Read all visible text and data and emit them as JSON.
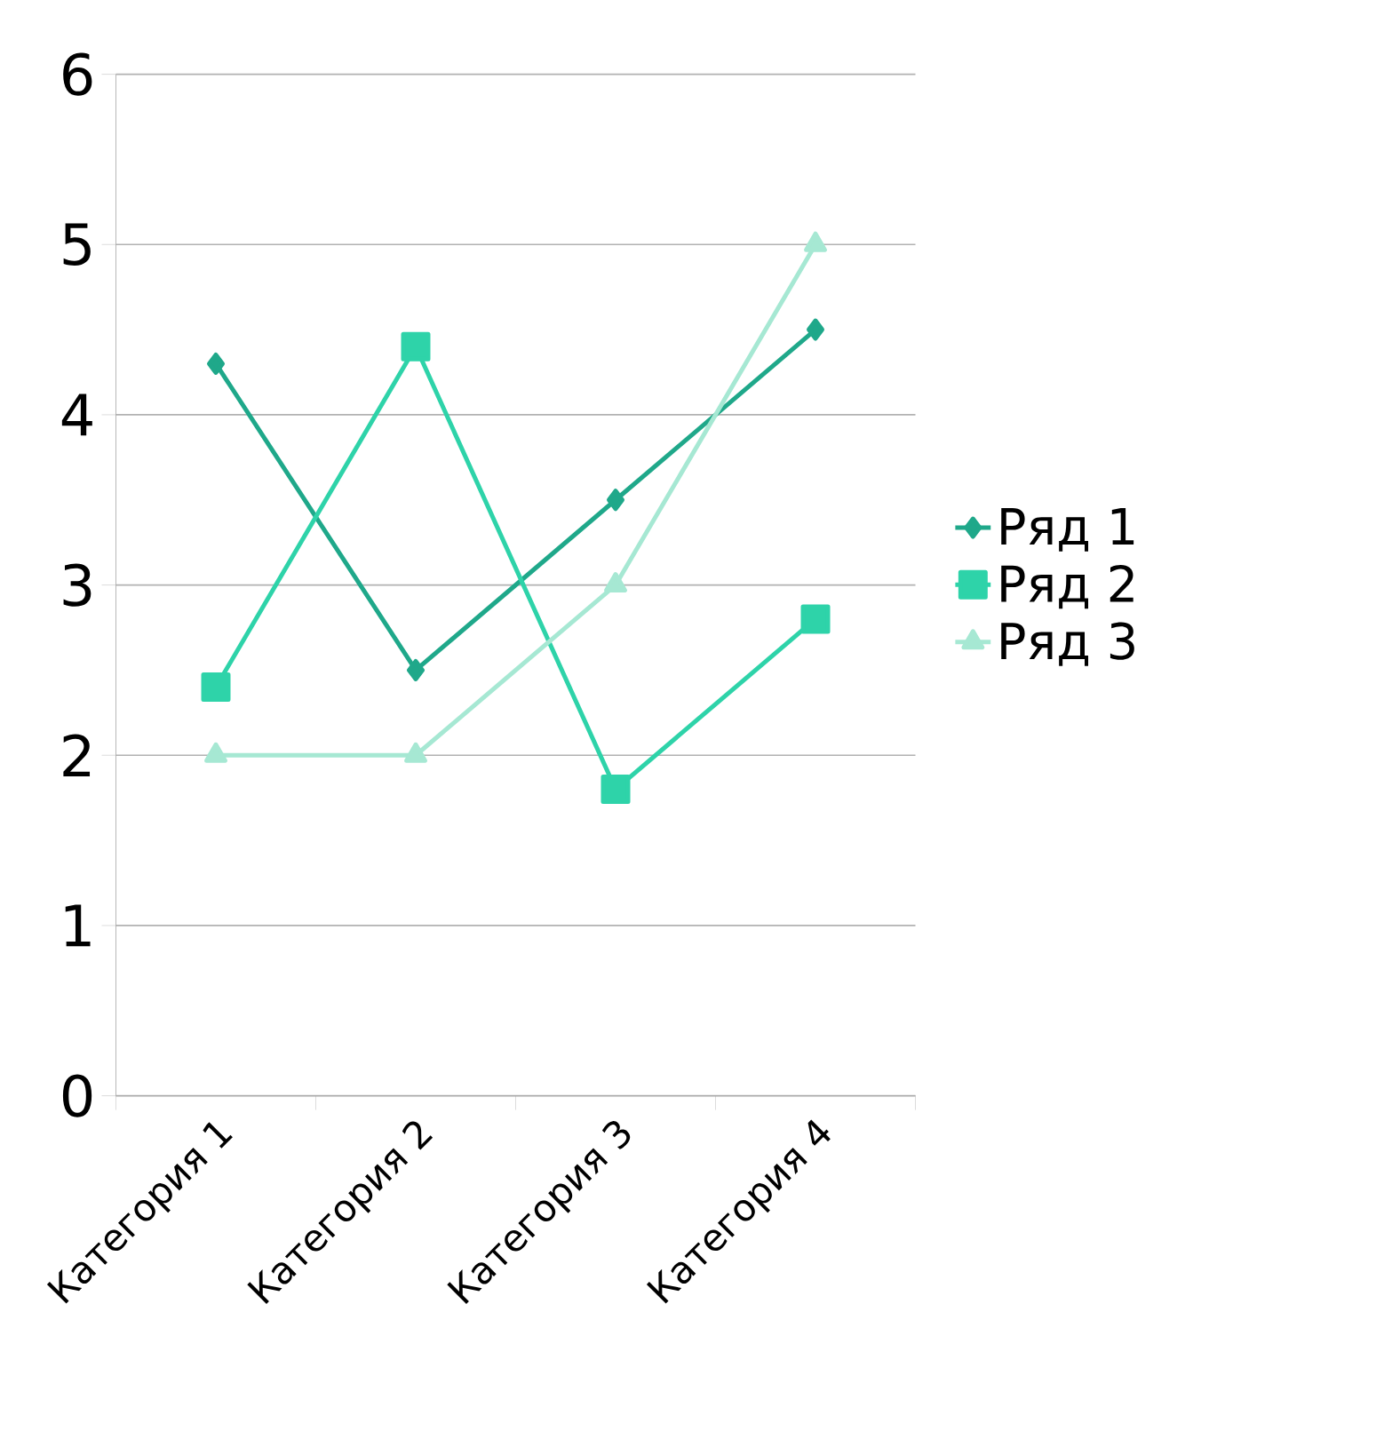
{
  "chart_data": {
    "type": "line",
    "categories": [
      "Категория 1",
      "Категория 2",
      "Категория 3",
      "Категория 4"
    ],
    "series": [
      {
        "name": "Ряд 1",
        "color": "#1fa88a",
        "marker": "diamond",
        "values": [
          4.3,
          2.5,
          3.5,
          4.5
        ]
      },
      {
        "name": "Ряд 2",
        "color": "#2ed3a9",
        "marker": "square",
        "values": [
          2.4,
          4.4,
          1.8,
          2.8
        ]
      },
      {
        "name": "Ряд 3",
        "color": "#a6e8d3",
        "marker": "triangle",
        "values": [
          2,
          2,
          3,
          5
        ]
      }
    ],
    "ylim": [
      0,
      6
    ],
    "yticks": [
      0,
      1,
      2,
      3,
      4,
      5,
      6
    ],
    "grid": "y",
    "legend": "right",
    "line_style": "solid"
  }
}
